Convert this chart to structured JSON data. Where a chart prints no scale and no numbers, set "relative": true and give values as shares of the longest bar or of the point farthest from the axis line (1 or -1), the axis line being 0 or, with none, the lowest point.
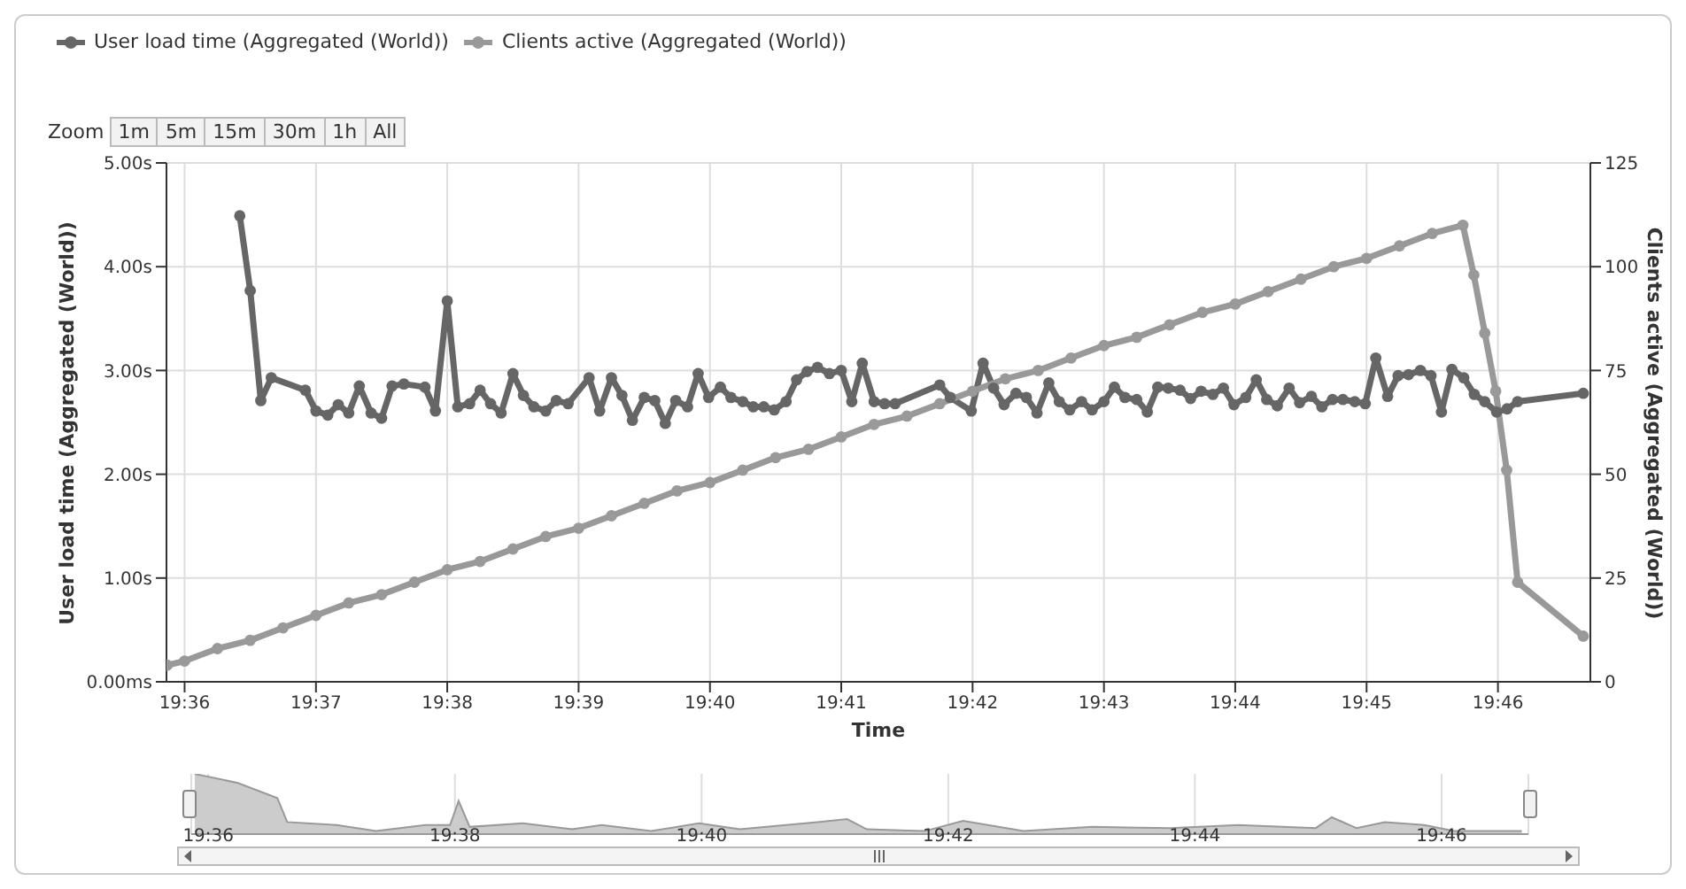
{
  "chart_data": [
    {
      "type": "line",
      "xlabel": "Time",
      "ylabel": "User load time (Aggregated (World))",
      "y2label": "Clients active (Aggregated (World))",
      "annotations": [
        "Zoom",
        "1m",
        "5m",
        "15m",
        "30m",
        "1h",
        "All"
      ],
      "legend": "top left",
      "grid": true,
      "marker": "circle",
      "line_style": "solid",
      "xlim": [
        19.5977,
        19.7784
      ],
      "xticks": [
        {
          "value": 19.6,
          "label": "19:36"
        },
        {
          "value": 19.61667,
          "label": "19:37"
        },
        {
          "value": 19.63333,
          "label": "19:38"
        },
        {
          "value": 19.65,
          "label": "19:39"
        },
        {
          "value": 19.66667,
          "label": "19:40"
        },
        {
          "value": 19.68333,
          "label": "19:41"
        },
        {
          "value": 19.7,
          "label": "19:42"
        },
        {
          "value": 19.71667,
          "label": "19:43"
        },
        {
          "value": 19.73333,
          "label": "19:44"
        },
        {
          "value": 19.75,
          "label": "19:45"
        },
        {
          "value": 19.76667,
          "label": "19:46"
        }
      ],
      "ylim": [
        0,
        5
      ],
      "yticks": [
        {
          "value": 0,
          "label": "0.00ms"
        },
        {
          "value": 1,
          "label": "1.00s"
        },
        {
          "value": 2,
          "label": "2.00s"
        },
        {
          "value": 3,
          "label": "3.00s"
        },
        {
          "value": 4,
          "label": "4.00s"
        },
        {
          "value": 5,
          "label": "5.00s"
        }
      ],
      "y2lim": [
        0,
        125
      ],
      "y2ticks": [
        0,
        25,
        50,
        75,
        100,
        125
      ],
      "series": [
        {
          "name": "User load time (Aggregated (World))",
          "color": "#666666",
          "axis": "y",
          "x": [
            19.607,
            19.60833,
            19.60967,
            19.611,
            19.61533,
            19.61667,
            19.61817,
            19.6195,
            19.62083,
            19.62217,
            19.62367,
            19.625,
            19.62633,
            19.62783,
            19.6305,
            19.63183,
            19.63333,
            19.63467,
            19.63617,
            19.6375,
            19.63883,
            19.64017,
            19.64167,
            19.643,
            19.64433,
            19.64583,
            19.64717,
            19.64867,
            19.65133,
            19.65267,
            19.65417,
            19.6555,
            19.65683,
            19.65833,
            19.65967,
            19.661,
            19.66233,
            19.66383,
            19.66517,
            19.6665,
            19.668,
            19.66933,
            19.67083,
            19.67217,
            19.6735,
            19.67483,
            19.67633,
            19.67767,
            19.679,
            19.68033,
            19.68183,
            19.68333,
            19.68467,
            19.686,
            19.6875,
            19.68883,
            19.69017,
            19.69583,
            19.69717,
            19.69983,
            19.70133,
            19.70267,
            19.704,
            19.7055,
            19.70683,
            19.70817,
            19.70967,
            19.711,
            19.71233,
            19.71383,
            19.71517,
            19.71667,
            19.718,
            19.71933,
            19.72083,
            19.72217,
            19.7235,
            19.72483,
            19.72633,
            19.72767,
            19.729,
            19.7305,
            19.73183,
            19.73317,
            19.73467,
            19.736,
            19.73733,
            19.73867,
            19.74017,
            19.7415,
            19.743,
            19.74433,
            19.74567,
            19.747,
            19.7485,
            19.74983,
            19.75117,
            19.75267,
            19.754,
            19.75533,
            19.75683,
            19.75817,
            19.7595,
            19.76083,
            19.76233,
            19.76367,
            19.765,
            19.7665,
            19.76783,
            19.76917,
            19.7775
          ],
          "values": [
            4.49,
            3.77,
            2.71,
            2.93,
            2.81,
            2.61,
            2.57,
            2.67,
            2.59,
            2.85,
            2.59,
            2.54,
            2.85,
            2.87,
            2.84,
            2.61,
            3.67,
            2.65,
            2.68,
            2.81,
            2.68,
            2.59,
            2.97,
            2.76,
            2.65,
            2.61,
            2.71,
            2.68,
            2.93,
            2.61,
            2.93,
            2.76,
            2.52,
            2.74,
            2.71,
            2.49,
            2.71,
            2.65,
            2.97,
            2.74,
            2.84,
            2.74,
            2.7,
            2.65,
            2.65,
            2.62,
            2.7,
            2.91,
            2.99,
            3.03,
            2.97,
            3.0,
            2.7,
            3.07,
            2.7,
            2.68,
            2.68,
            2.86,
            2.74,
            2.61,
            3.07,
            2.83,
            2.67,
            2.78,
            2.74,
            2.59,
            2.88,
            2.7,
            2.62,
            2.7,
            2.62,
            2.7,
            2.84,
            2.74,
            2.72,
            2.6,
            2.84,
            2.83,
            2.81,
            2.73,
            2.8,
            2.77,
            2.83,
            2.67,
            2.74,
            2.91,
            2.72,
            2.66,
            2.83,
            2.69,
            2.75,
            2.65,
            2.72,
            2.72,
            2.7,
            2.68,
            3.12,
            2.75,
            2.95,
            2.96,
            3.0,
            2.95,
            2.6,
            3.01,
            2.93,
            2.77,
            2.7,
            2.6,
            2.63,
            2.7,
            2.78
          ]
        },
        {
          "name": "Clients active (Aggregated (World))",
          "color": "#999999",
          "axis": "y2",
          "x": [
            19.59778,
            19.6,
            19.60417,
            19.60833,
            19.6125,
            19.61667,
            19.62083,
            19.625,
            19.62917,
            19.63333,
            19.6375,
            19.64167,
            19.64583,
            19.65,
            19.65417,
            19.65833,
            19.6625,
            19.66667,
            19.67083,
            19.675,
            19.67917,
            19.68333,
            19.6875,
            19.69167,
            19.69583,
            19.7,
            19.70417,
            19.70833,
            19.7125,
            19.71667,
            19.72083,
            19.725,
            19.72917,
            19.73333,
            19.7375,
            19.74167,
            19.74583,
            19.75,
            19.75417,
            19.75833,
            19.76222,
            19.76361,
            19.765,
            19.76639,
            19.76778,
            19.76917,
            19.7775
          ],
          "values": [
            4,
            5,
            8,
            10,
            13,
            16,
            19,
            21,
            24,
            27,
            29,
            32,
            35,
            37,
            40,
            43,
            46,
            48,
            51,
            54,
            56,
            59,
            62,
            64,
            67,
            70,
            73,
            75,
            78,
            81,
            83,
            86,
            89,
            91,
            94,
            97,
            100,
            102,
            105,
            108,
            110,
            98,
            84,
            70,
            51,
            24,
            11
          ]
        }
      ]
    },
    {
      "type": "area",
      "relative": true,
      "tick_labels": "x",
      "grid": "x",
      "xlim": [
        19.5977,
        19.7784
      ],
      "xticks": [
        {
          "value": 19.6,
          "label": "19:36"
        },
        {
          "value": 19.63333,
          "label": "19:38"
        },
        {
          "value": 19.66667,
          "label": "19:40"
        },
        {
          "value": 19.7,
          "label": "19:42"
        },
        {
          "value": 19.73333,
          "label": "19:44"
        },
        {
          "value": 19.76667,
          "label": "19:46"
        }
      ],
      "series": [
        {
          "color": "#cccccc",
          "x": [
            19.59817,
            19.604,
            19.60933,
            19.61067,
            19.61733,
            19.62267,
            19.62933,
            19.63267,
            19.63383,
            19.63533,
            19.6425,
            19.64917,
            19.65317,
            19.65983,
            19.66633,
            19.67183,
            19.68233,
            19.68633,
            19.689,
            19.69683,
            19.702,
            19.71017,
            19.7195,
            19.73,
            19.73917,
            19.74967,
            19.75183,
            19.75517,
            19.759,
            19.76433,
            19.76833,
            19.7775
          ],
          "values": [
            1,
            0.85,
            0.6,
            0.2,
            0.15,
            0.05,
            0.15,
            0.15,
            0.55,
            0.12,
            0.18,
            0.08,
            0.15,
            0.05,
            0.18,
            0.08,
            0.2,
            0.25,
            0.08,
            0.05,
            0.22,
            0.05,
            0.12,
            0.1,
            0.15,
            0.1,
            0.28,
            0.1,
            0.2,
            0.15,
            0.05,
            0.05
          ]
        }
      ]
    }
  ]
}
